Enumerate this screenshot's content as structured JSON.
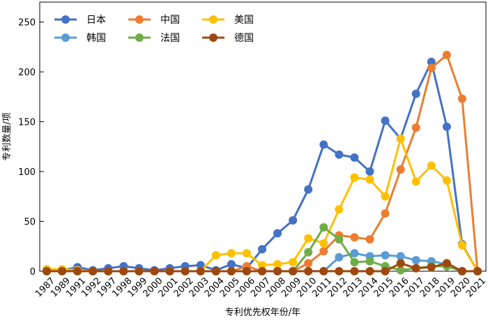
{
  "chart_data": {
    "type": "line",
    "xlabel": "专利优先权年份/年",
    "ylabel": "专利数量/项",
    "ylim": [
      0,
      270
    ],
    "yticks": [
      0,
      50,
      100,
      150,
      200,
      250
    ],
    "categories": [
      "1987",
      "1989",
      "1991",
      "1992",
      "1997",
      "1998",
      "1999",
      "2000",
      "2001",
      "2002",
      "2003",
      "2004",
      "2005",
      "2006",
      "2007",
      "2008",
      "2009",
      "2010",
      "2011",
      "2012",
      "2013",
      "2014",
      "2015",
      "2016",
      "2017",
      "2018",
      "2019",
      "2020",
      "2021"
    ],
    "grid": false,
    "legend_position": "top-left",
    "series": [
      {
        "name": "日本",
        "color": "#4472c4",
        "values": [
          1,
          1,
          4,
          1,
          3,
          5,
          3,
          1,
          3,
          5,
          6,
          1,
          7,
          3,
          22,
          38,
          51,
          82,
          127,
          117,
          114,
          100,
          151,
          133,
          178,
          210,
          145,
          27,
          0
        ]
      },
      {
        "name": "中国",
        "color": "#ed7d31",
        "values": [
          1,
          0,
          0,
          0,
          0,
          0,
          0,
          0,
          0,
          0,
          0,
          0,
          0,
          5,
          0,
          0,
          0,
          8,
          20,
          36,
          34,
          32,
          58,
          102,
          144,
          204,
          217,
          173,
          0
        ]
      },
      {
        "name": "美国",
        "color": "#ffc000",
        "values": [
          2,
          2,
          1,
          0,
          0,
          0,
          0,
          0,
          0,
          0,
          0,
          16,
          18,
          18,
          6,
          7,
          9,
          33,
          28,
          62,
          94,
          92,
          75,
          133,
          90,
          106,
          91,
          26,
          0
        ]
      },
      {
        "name": "韩国",
        "color": "#5b9bd5",
        "values": [
          0,
          0,
          0,
          0,
          0,
          0,
          0,
          0,
          0,
          0,
          0,
          0,
          0,
          0,
          0,
          0,
          0,
          0,
          0,
          14,
          18,
          15,
          16,
          15,
          11,
          10,
          7,
          0,
          0
        ]
      },
      {
        "name": "法国",
        "color": "#70ad47",
        "values": [
          0,
          0,
          0,
          0,
          0,
          0,
          0,
          0,
          0,
          0,
          0,
          0,
          0,
          0,
          0,
          0,
          0,
          19,
          44,
          32,
          9,
          10,
          5,
          1,
          3,
          5,
          5,
          0,
          0
        ]
      },
      {
        "name": "德国",
        "color": "#9e480e",
        "values": [
          0,
          0,
          0,
          0,
          0,
          0,
          0,
          0,
          0,
          0,
          0,
          0,
          0,
          0,
          0,
          0,
          0,
          0,
          0,
          0,
          0,
          0,
          0,
          8,
          3,
          4,
          8,
          0,
          0
        ]
      }
    ]
  }
}
